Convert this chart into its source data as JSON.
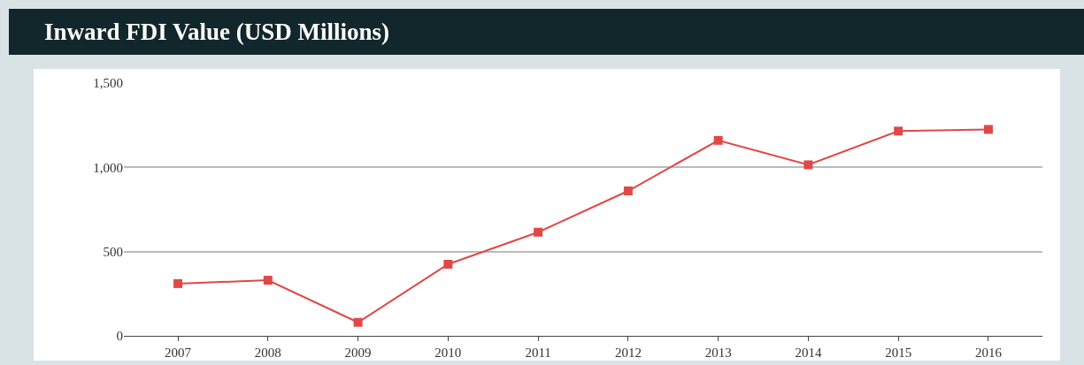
{
  "chart_data": {
    "type": "line",
    "title": "Inward FDI Value (USD Millions)",
    "categories": [
      "2007",
      "2008",
      "2009",
      "2010",
      "2011",
      "2012",
      "2013",
      "2014",
      "2015",
      "2016"
    ],
    "series": [
      {
        "color": "#e04848",
        "values": [
          310,
          330,
          80,
          425,
          615,
          860,
          1160,
          1015,
          1215,
          1225
        ]
      }
    ],
    "ylim": [
      0,
      1500
    ],
    "yticks": [
      0,
      {
        "value": 500,
        "label": "500"
      },
      {
        "value": 1000,
        "label": "1,000"
      },
      {
        "value": 1500,
        "label": "1,500"
      }
    ],
    "grid": "y",
    "marker": "square",
    "line_style": "solid"
  }
}
